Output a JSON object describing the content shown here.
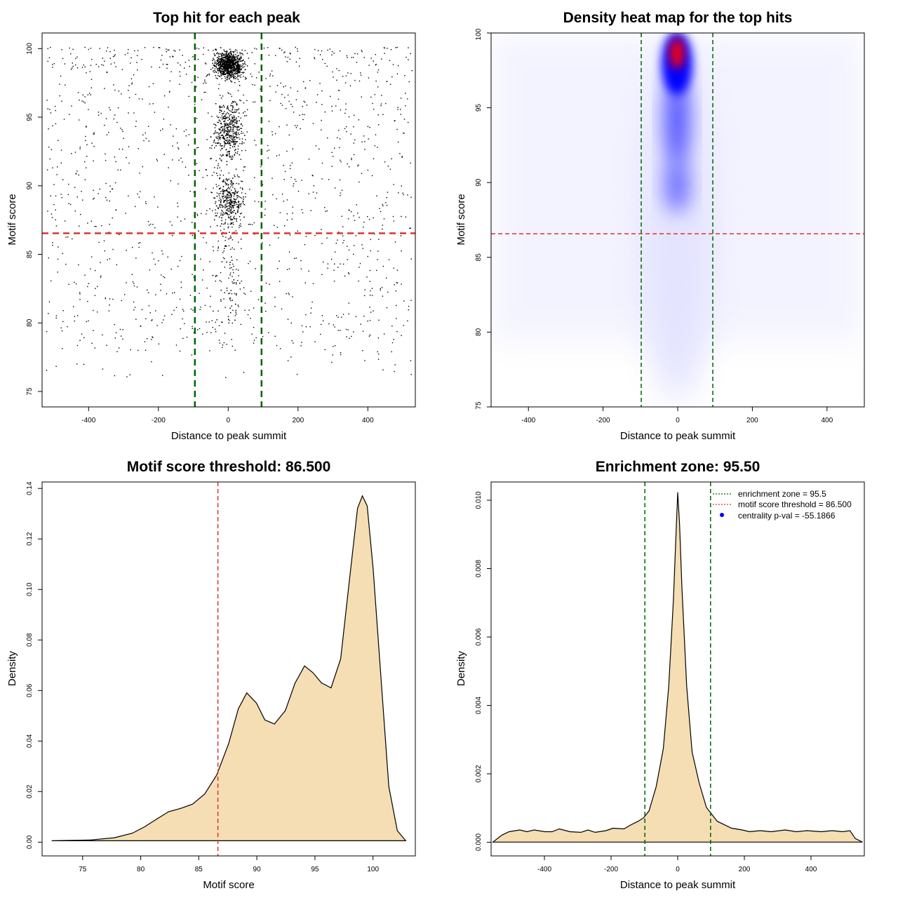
{
  "chart_data": [
    {
      "type": "scatter",
      "title": "Top hit for each peak",
      "xlabel": "Distance to peak summit",
      "ylabel": "Motif score",
      "xlim": [
        -500,
        500
      ],
      "ylim": [
        74,
        101
      ],
      "xticks": [
        -400,
        -200,
        0,
        200,
        400
      ],
      "yticks": [
        75,
        80,
        85,
        90,
        95,
        100
      ],
      "tick_labels_x": [
        "-400",
        "-200",
        "0",
        "200",
        "400"
      ],
      "tick_labels_y": [
        "75",
        "80",
        "85",
        "90",
        "95",
        "100"
      ],
      "vlines": [
        -95.5,
        95.5
      ],
      "hline": 86.5,
      "vline_color": "#006400",
      "hline_color": "#e03030",
      "point_color": "#000000",
      "central_cluster": {
        "x_sd": 32,
        "score_peaks": [
          89,
          94,
          98.7
        ]
      }
    },
    {
      "type": "heatmap",
      "title": "Density heat map for the top hits",
      "xlabel": "Distance to peak summit",
      "ylabel": "Motif score",
      "xlim": [
        -500,
        500
      ],
      "ylim": [
        75,
        100
      ],
      "xticks": [
        -400,
        -200,
        0,
        200,
        400
      ],
      "yticks": [
        75,
        80,
        85,
        90,
        95,
        100
      ],
      "tick_labels_x": [
        "-400",
        "-200",
        "0",
        "200",
        "400"
      ],
      "tick_labels_y": [
        "75",
        "80",
        "85",
        "90",
        "95",
        "100"
      ],
      "vlines": [
        -95.5,
        95.5
      ],
      "hline": 86.5,
      "hotspots": [
        {
          "x": 0,
          "y": 98.7,
          "intensity": 1.0
        },
        {
          "x": 0,
          "y": 94,
          "intensity": 0.55
        },
        {
          "x": 0,
          "y": 89,
          "intensity": 0.45
        }
      ],
      "colors": [
        "#ffffff",
        "#0000ff",
        "#ff0000"
      ]
    },
    {
      "type": "area",
      "title": "Motif score threshold: 86.500",
      "xlabel": "Motif score",
      "ylabel": "Density",
      "xlim": [
        72,
        103
      ],
      "ylim": [
        -0.006,
        0.142
      ],
      "xticks": [
        75,
        80,
        85,
        90,
        95,
        100
      ],
      "yticks": [
        0,
        0.02,
        0.04,
        0.06,
        0.08,
        0.1,
        0.12,
        0.14
      ],
      "tick_labels_x": [
        "75",
        "80",
        "85",
        "90",
        "95",
        "100"
      ],
      "tick_labels_y": [
        "0.00",
        "0.02",
        "0.04",
        "0.06",
        "0.08",
        "0.10",
        "0.12",
        "0.14"
      ],
      "x": [
        72.8,
        76,
        78,
        79.5,
        80.5,
        81.5,
        82.5,
        83.5,
        84.5,
        85.5,
        86.5,
        87.5,
        88.3,
        89,
        89.8,
        90.5,
        91.3,
        92.2,
        93,
        93.8,
        94.5,
        95.2,
        96,
        96.8,
        97.5,
        98.2,
        98.6,
        99,
        99.5,
        100.2,
        100.8,
        101.5,
        102.2
      ],
      "y": [
        0,
        0.0003,
        0.0012,
        0.003,
        0.0055,
        0.0085,
        0.0115,
        0.0128,
        0.0145,
        0.0185,
        0.026,
        0.0385,
        0.0522,
        0.0585,
        0.0545,
        0.0478,
        0.0462,
        0.0515,
        0.0623,
        0.0692,
        0.0665,
        0.0625,
        0.0605,
        0.072,
        0.102,
        0.1315,
        0.1365,
        0.1325,
        0.1075,
        0.0612,
        0.0215,
        0.004,
        0
      ],
      "vline": 86.5,
      "vline_color": "#e03030",
      "fill_color": "#f5deb3"
    },
    {
      "type": "area",
      "title": "Enrichment zone: 95.50",
      "xlabel": "Distance to peak summit",
      "ylabel": "Density",
      "xlim": [
        -520,
        520
      ],
      "ylim": [
        -0.0004,
        0.0104
      ],
      "xticks": [
        -400,
        -200,
        0,
        200,
        400
      ],
      "yticks": [
        0,
        0.002,
        0.004,
        0.006,
        0.008,
        0.01
      ],
      "tick_labels_x": [
        "-400",
        "-200",
        "0",
        "200",
        "400"
      ],
      "tick_labels_y": [
        "0.000",
        "0.002",
        "0.004",
        "0.006",
        "0.008",
        "0.010"
      ],
      "x": [
        -515,
        -490,
        -470,
        -440,
        -420,
        -400,
        -370,
        -350,
        -330,
        -300,
        -270,
        -250,
        -230,
        -200,
        -180,
        -150,
        -130,
        -110,
        -95,
        -80,
        -60,
        -40,
        -25,
        -12,
        -5,
        0,
        5,
        12,
        25,
        40,
        60,
        80,
        95,
        110,
        130,
        150,
        180,
        200,
        230,
        260,
        300,
        330,
        360,
        400,
        430,
        460,
        480,
        495,
        515
      ],
      "y": [
        0,
        0.0002,
        0.0003,
        0.00035,
        0.0003,
        0.00035,
        0.0003,
        0.0003,
        0.00038,
        0.0003,
        0.00028,
        0.00035,
        0.00028,
        0.00033,
        0.0004,
        0.00038,
        0.0005,
        0.0006,
        0.0007,
        0.0009,
        0.0016,
        0.0027,
        0.0045,
        0.007,
        0.0088,
        0.0101,
        0.0092,
        0.0073,
        0.0045,
        0.0026,
        0.0017,
        0.001,
        0.0008,
        0.0006,
        0.0005,
        0.0004,
        0.00035,
        0.0003,
        0.00033,
        0.0003,
        0.00035,
        0.0003,
        0.00033,
        0.0003,
        0.00033,
        0.0003,
        0.00033,
        0.0001,
        0
      ],
      "vlines": [
        -95.5,
        95.5
      ],
      "vline_color": "#006400",
      "fill_color": "#f5deb3",
      "legend": {
        "position": "top-right",
        "entries": [
          {
            "label": "enrichment zone = 95.5",
            "color": "#006400",
            "style": "dotted-line"
          },
          {
            "label": "motif score threshold = 86.500",
            "color": "#e03030",
            "style": "dotted-line"
          },
          {
            "label": "centrality p-val = -55.1866",
            "color": "#0000ff",
            "style": "point"
          }
        ]
      }
    }
  ]
}
